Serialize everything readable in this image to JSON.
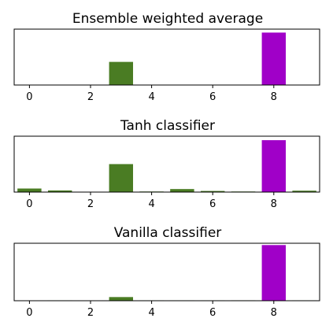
{
  "chart_data": [
    {
      "type": "bar",
      "title": "Ensemble weighted average",
      "x": [
        0,
        1,
        2,
        3,
        4,
        5,
        6,
        7,
        8,
        9
      ],
      "values": [
        0.005,
        0.004,
        0.004,
        0.43,
        0.004,
        0.004,
        0.004,
        0.004,
        0.97,
        0.01
      ],
      "colors": [
        "#4a7c23",
        "#4a7c23",
        "#4a7c23",
        "#4a7c23",
        "#4a7c23",
        "#4a7c23",
        "#4a7c23",
        "#4a7c23",
        "#a000c8",
        "#4a7c23"
      ],
      "xticks": [
        "0",
        "2",
        "4",
        "6",
        "8"
      ],
      "xlim": [
        -0.5,
        9.5
      ],
      "ylim": [
        0,
        1.0
      ]
    },
    {
      "type": "bar",
      "title": "Tanh classifier",
      "x": [
        0,
        1,
        2,
        3,
        4,
        5,
        6,
        7,
        8,
        9
      ],
      "values": [
        0.07,
        0.035,
        0.004,
        0.52,
        0.015,
        0.06,
        0.025,
        0.015,
        0.96,
        0.03
      ],
      "colors": [
        "#4a7c23",
        "#4a7c23",
        "#4a7c23",
        "#4a7c23",
        "#4a7c23",
        "#4a7c23",
        "#4a7c23",
        "#4a7c23",
        "#a000c8",
        "#4a7c23"
      ],
      "xticks": [
        "0",
        "2",
        "4",
        "6",
        "8"
      ],
      "xlim": [
        -0.5,
        9.5
      ],
      "ylim": [
        0,
        1.0
      ]
    },
    {
      "type": "bar",
      "title": "Vanilla classifier",
      "x": [
        0,
        1,
        2,
        3,
        4,
        5,
        6,
        7,
        8,
        9
      ],
      "values": [
        0.01,
        0.008,
        0.01,
        0.07,
        0.008,
        0.008,
        0.008,
        0.012,
        1.0,
        0.008
      ],
      "colors": [
        "#4a7c23",
        "#4a7c23",
        "#4a7c23",
        "#4a7c23",
        "#4a7c23",
        "#4a7c23",
        "#4a7c23",
        "#4a7c23",
        "#a000c8",
        "#4a7c23"
      ],
      "xticks": [
        "0",
        "2",
        "4",
        "6",
        "8"
      ],
      "xlim": [
        -0.5,
        9.5
      ],
      "ylim": [
        0,
        1.0
      ]
    }
  ]
}
